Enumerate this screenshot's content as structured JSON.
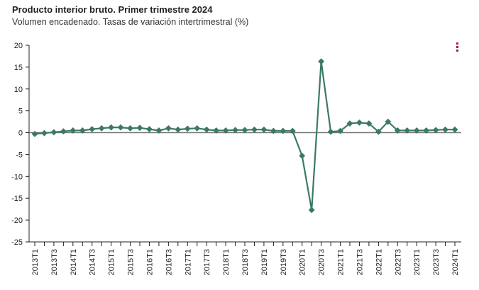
{
  "header": {
    "title": "Producto interior bruto. Primer trimestre 2024",
    "subtitle": "Volumen encadenado. Tasas de variación intertrimestral (%)",
    "menu_icon": "vertical-ellipsis-icon"
  },
  "colors": {
    "series": "#3b7a62",
    "zero_line": "#777777",
    "axis": "#222222",
    "menu": "#a51e36"
  },
  "chart_data": {
    "type": "line",
    "title": "Producto interior bruto. Primer trimestre 2024",
    "subtitle": "Volumen encadenado. Tasas de variación intertrimestral (%)",
    "ylim": [
      -25,
      20
    ],
    "yticks": [
      20,
      15,
      10,
      5,
      0,
      -5,
      -10,
      -15,
      -20,
      -25
    ],
    "grid": false,
    "tick_labels": [
      "2013T1",
      "2013T3",
      "2014T1",
      "2014T3",
      "2015T1",
      "2015T3",
      "2016T1",
      "2016T3",
      "2017T1",
      "2017T3",
      "2018T1",
      "2018T3",
      "2019T1",
      "2019T3",
      "2020T1",
      "2020T3",
      "2021T1",
      "2021T3",
      "2022T1",
      "2022T3",
      "2023T1",
      "2023T3",
      "2024T1"
    ],
    "x": [
      "2013T1",
      "2013T2",
      "2013T3",
      "2013T4",
      "2014T1",
      "2014T2",
      "2014T3",
      "2014T4",
      "2015T1",
      "2015T2",
      "2015T3",
      "2015T4",
      "2016T1",
      "2016T2",
      "2016T3",
      "2016T4",
      "2017T1",
      "2017T2",
      "2017T3",
      "2017T4",
      "2018T1",
      "2018T2",
      "2018T3",
      "2018T4",
      "2019T1",
      "2019T2",
      "2019T3",
      "2019T4",
      "2020T1",
      "2020T2",
      "2020T3",
      "2020T4",
      "2021T1",
      "2021T2",
      "2021T3",
      "2021T4",
      "2022T1",
      "2022T2",
      "2022T3",
      "2022T4",
      "2023T1",
      "2023T2",
      "2023T3",
      "2023T4",
      "2024T1"
    ],
    "series": [
      {
        "values": [
          -0.3,
          -0.1,
          0.1,
          0.3,
          0.5,
          0.5,
          0.8,
          1.0,
          1.2,
          1.2,
          1.0,
          1.1,
          0.8,
          0.5,
          1.0,
          0.7,
          0.9,
          1.0,
          0.7,
          0.5,
          0.5,
          0.6,
          0.6,
          0.7,
          0.7,
          0.4,
          0.4,
          0.4,
          -5.3,
          -17.7,
          16.3,
          0.2,
          0.4,
          2.1,
          2.3,
          2.1,
          0.2,
          2.5,
          0.5,
          0.5,
          0.5,
          0.5,
          0.6,
          0.7,
          0.7
        ]
      }
    ]
  }
}
